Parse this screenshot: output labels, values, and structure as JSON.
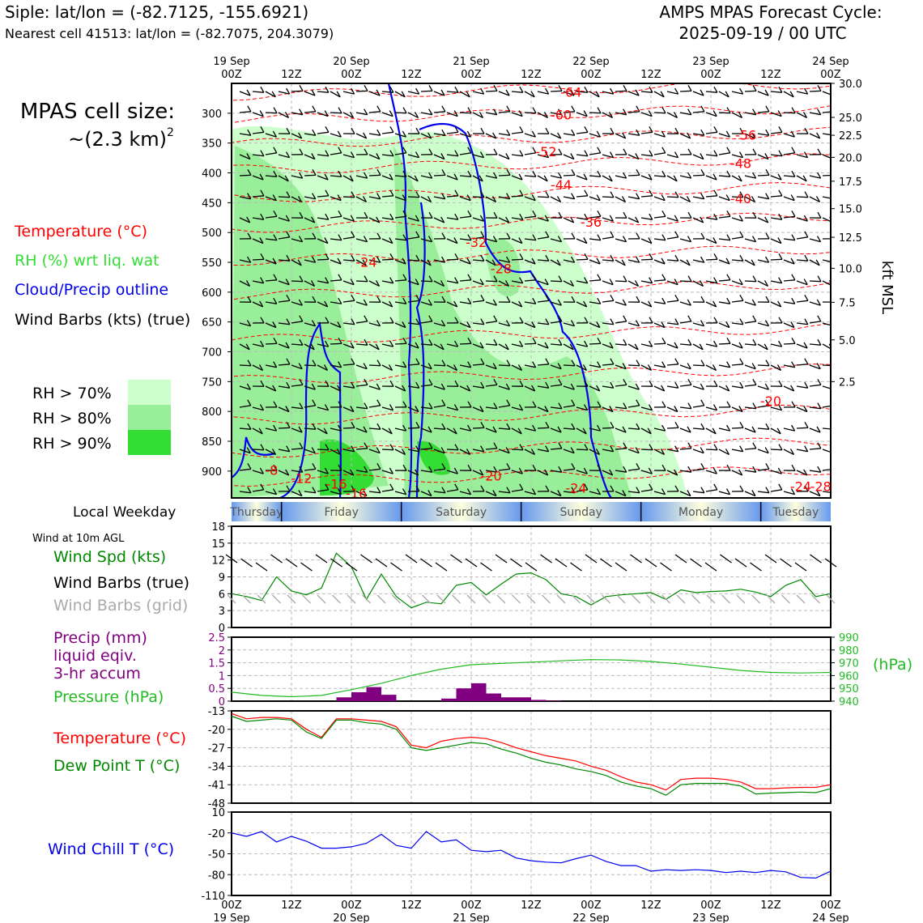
{
  "header": {
    "site_line": "Siple: lat/lon = (-82.7125, -155.6921)",
    "cell_line": "Nearest cell 41513: lat/lon = (-82.7075, 204.3079)",
    "cycle_title": "AMPS MPAS Forecast Cycle:",
    "cycle_time": "2025-09-19 / 00 UTC"
  },
  "legend": {
    "cell_size_title": "MPAS cell size:",
    "cell_size_value": "~(2.3 km)",
    "cell_size_exp": "2",
    "temperature": "Temperature (°C)",
    "rh": "RH (%) wrt liq. wat",
    "cloud": "Cloud/Precip outline",
    "barbs": "Wind Barbs (kts) (true)",
    "rh70": "RH > 70%",
    "rh80": "RH > 80%",
    "rh90": "RH > 90%",
    "colors": {
      "rh70": "#ccffcc",
      "rh80": "#99ee99",
      "rh90": "#33dd33",
      "temp": "#ff0000",
      "rh_text": "#33dd33",
      "cloud": "#0000ee"
    }
  },
  "time_axis": {
    "top_labels": [
      {
        "h": 0,
        "l1": "19 Sep",
        "l2": "00Z"
      },
      {
        "h": 12,
        "l1": "",
        "l2": "12Z"
      },
      {
        "h": 24,
        "l1": "20 Sep",
        "l2": "00Z"
      },
      {
        "h": 36,
        "l1": "",
        "l2": "12Z"
      },
      {
        "h": 48,
        "l1": "21 Sep",
        "l2": "00Z"
      },
      {
        "h": 60,
        "l1": "",
        "l2": "12Z"
      },
      {
        "h": 72,
        "l1": "22 Sep",
        "l2": "00Z"
      },
      {
        "h": 84,
        "l1": "",
        "l2": "12Z"
      },
      {
        "h": 96,
        "l1": "23 Sep",
        "l2": "00Z"
      },
      {
        "h": 108,
        "l1": "",
        "l2": "12Z"
      },
      {
        "h": 120,
        "l1": "24 Sep",
        "l2": "00Z"
      }
    ],
    "range_hours": [
      0,
      120
    ]
  },
  "weekday": {
    "label": "Local Weekday",
    "days": [
      "Thursday",
      "Friday",
      "Saturday",
      "Sunday",
      "Monday",
      "Tuesday"
    ]
  },
  "panels": {
    "wind_title": "Wind at 10m AGL",
    "wind_spd": "Wind Spd (kts)",
    "wind_barbs_true": "Wind Barbs (true)",
    "wind_barbs_grid": "Wind Barbs (grid)",
    "precip_l1": "Precip (mm)",
    "precip_l2": "liquid eqiv.",
    "precip_l3": "3-hr accum",
    "pressure": "Pressure (hPa)",
    "pressure_unit": "(hPa)",
    "temp": "Temperature (°C)",
    "dewpt": "Dew Point T (°C)",
    "windchill": "Wind Chill T (°C)",
    "colors": {
      "wind": "#008800",
      "barb_grid": "#aaaaaa",
      "precip": "#800080",
      "pressure": "#22bb22",
      "temp": "#ff0000",
      "dewpt": "#008800",
      "windchill": "#0000ee"
    }
  },
  "chart_data": [
    {
      "type": "heatmap",
      "title": "Time-height section",
      "x_range_hours": [
        0,
        120
      ],
      "y_axis_left": {
        "label": "",
        "ticks": [
          300,
          350,
          400,
          450,
          500,
          550,
          600,
          650,
          700,
          750,
          800,
          850,
          900
        ],
        "ylim": [
          945,
          250
        ]
      },
      "y_axis_right": {
        "label": "kft MSL",
        "ticks": [
          "30.0",
          "25.0",
          "22.5",
          "20.0",
          "17.5",
          "15.0",
          "12.5",
          "10.0",
          "7.5",
          "5.0",
          "2.5"
        ],
        "tick_p": [
          250,
          307,
          337,
          374,
          414,
          460,
          508,
          560,
          617,
          680,
          750
        ]
      },
      "temperature_contour_labels": [
        {
          "v": "-64",
          "h": 68,
          "p": 264
        },
        {
          "v": "-60",
          "h": 66,
          "p": 302
        },
        {
          "v": "-56",
          "h": 103,
          "p": 336
        },
        {
          "v": "-52",
          "h": 63,
          "p": 364
        },
        {
          "v": "-48",
          "h": 102,
          "p": 384
        },
        {
          "v": "-44",
          "h": 66,
          "p": 420
        },
        {
          "v": "-40",
          "h": 102,
          "p": 443
        },
        {
          "v": "-36",
          "h": 72,
          "p": 482
        },
        {
          "v": "-32",
          "h": 49,
          "p": 516
        },
        {
          "v": "-28",
          "h": 54,
          "p": 560
        },
        {
          "v": "-24",
          "h": 27,
          "p": 549
        },
        {
          "v": "-20",
          "h": 108,
          "p": 782
        },
        {
          "v": "-20",
          "h": 52,
          "p": 908
        },
        {
          "v": "-24",
          "h": 69,
          "p": 928
        },
        {
          "v": "-24",
          "h": 114,
          "p": 925
        },
        {
          "v": "-28",
          "h": 118,
          "p": 925
        },
        {
          "v": "-16",
          "h": 21,
          "p": 921
        },
        {
          "v": "-16",
          "h": 25,
          "p": 937
        },
        {
          "v": "-12",
          "h": 14,
          "p": 912
        },
        {
          "v": "-8",
          "h": 8,
          "p": 898
        }
      ]
    },
    {
      "type": "line",
      "title": "Wind at 10m AGL",
      "ylabel": "Wind Spd (kts)",
      "ylim": [
        0,
        18
      ],
      "yticks": [
        0,
        3,
        6,
        9,
        12,
        15,
        18
      ],
      "series": [
        {
          "name": "Wind Spd (kts)",
          "x": [
            0,
            3,
            6,
            9,
            12,
            15,
            18,
            21,
            24,
            27,
            30,
            33,
            36,
            39,
            42,
            45,
            48,
            51,
            54,
            57,
            60,
            63,
            66,
            69,
            72,
            75,
            78,
            81,
            84,
            87,
            90,
            93,
            96,
            99,
            102,
            105,
            108,
            111,
            114,
            117,
            120
          ],
          "values": [
            6,
            5.5,
            4.8,
            9,
            6.5,
            5.8,
            7,
            13.2,
            10.8,
            5,
            9.5,
            5.5,
            3.5,
            4.5,
            4.2,
            7.5,
            8,
            5.8,
            7.7,
            9.5,
            9.7,
            8.5,
            6,
            5.5,
            4,
            5.5,
            5.8,
            6,
            6.2,
            5,
            6.7,
            6.2,
            6.4,
            6.5,
            6.8,
            6.3,
            5.5,
            7.5,
            8.5,
            5.5,
            6
          ]
        }
      ]
    },
    {
      "type": "bar",
      "title": "Precip / Pressure",
      "ylabel_left": "Precip (mm)",
      "ylim_left": [
        0,
        2.5
      ],
      "yticks_left": [
        0,
        0.5,
        1.0,
        1.5,
        2.0,
        2.5
      ],
      "ylim_right": [
        940,
        990
      ],
      "yticks_right": [
        940,
        950,
        960,
        970,
        980,
        990
      ],
      "precip": {
        "x": [
          21,
          24,
          27,
          30,
          42,
          45,
          48,
          51,
          54,
          57,
          60,
          63
        ],
        "values": [
          0.15,
          0.35,
          0.55,
          0.25,
          0.1,
          0.5,
          0.7,
          0.3,
          0.15,
          0.15,
          0.05,
          0.02
        ]
      },
      "pressure": {
        "x": [
          0,
          6,
          12,
          18,
          24,
          30,
          36,
          42,
          48,
          54,
          60,
          66,
          72,
          78,
          84,
          90,
          96,
          102,
          108,
          114,
          120
        ],
        "values": [
          947,
          944.5,
          943.5,
          944.5,
          949,
          954,
          960,
          965,
          968.5,
          969.5,
          970.5,
          971.5,
          972.5,
          972.2,
          971,
          969,
          966.5,
          964,
          962.5,
          962,
          962.5
        ]
      }
    },
    {
      "type": "line",
      "title": "Temperature / Dew Point",
      "ylim": [
        -48,
        -13
      ],
      "yticks": [
        -13,
        -20,
        -27,
        -34,
        -41,
        -48
      ],
      "series": [
        {
          "name": "Temperature (°C)",
          "x": [
            0,
            3,
            6,
            9,
            12,
            15,
            18,
            21,
            24,
            27,
            30,
            33,
            36,
            39,
            42,
            45,
            48,
            51,
            54,
            57,
            60,
            63,
            66,
            69,
            72,
            75,
            78,
            81,
            84,
            87,
            90,
            93,
            96,
            99,
            102,
            105,
            108,
            111,
            114,
            117,
            120
          ],
          "values": [
            -14,
            -16,
            -15.5,
            -15.5,
            -16,
            -20,
            -23,
            -16,
            -16,
            -16.5,
            -17,
            -19,
            -26,
            -27,
            -24.5,
            -23.5,
            -23,
            -23.5,
            -25,
            -27,
            -28.5,
            -30,
            -31,
            -32,
            -34,
            -35.5,
            -38,
            -40,
            -41,
            -43,
            -39,
            -38.5,
            -38.5,
            -39,
            -40,
            -42.5,
            -42.5,
            -42.2,
            -42,
            -42,
            -41
          ]
        },
        {
          "name": "Dew Point T (°C)",
          "x": [
            0,
            3,
            6,
            9,
            12,
            15,
            18,
            21,
            24,
            27,
            30,
            33,
            36,
            39,
            42,
            45,
            48,
            51,
            54,
            57,
            60,
            63,
            66,
            69,
            72,
            75,
            78,
            81,
            84,
            87,
            90,
            93,
            96,
            99,
            102,
            105,
            108,
            111,
            114,
            117,
            120
          ],
          "values": [
            -15,
            -17,
            -16.5,
            -16,
            -16.5,
            -21,
            -23.5,
            -16.5,
            -16.5,
            -17.5,
            -18,
            -20,
            -27,
            -28,
            -27,
            -26,
            -25,
            -25.5,
            -27.5,
            -29,
            -31,
            -32.5,
            -33.5,
            -35,
            -36,
            -37.5,
            -40,
            -41.5,
            -42.5,
            -45,
            -41,
            -40.5,
            -40.5,
            -40.5,
            -41.5,
            -44.5,
            -44.2,
            -44,
            -43.8,
            -44,
            -42.5
          ]
        }
      ]
    },
    {
      "type": "line",
      "title": "Wind Chill",
      "ylabel": "Wind Chill T (°C)",
      "ylim": [
        -110,
        10
      ],
      "yticks": [
        10,
        -20,
        -50,
        -80,
        -110
      ],
      "series": [
        {
          "name": "Wind Chill T (°C)",
          "x": [
            0,
            3,
            6,
            9,
            12,
            15,
            18,
            21,
            24,
            27,
            30,
            33,
            36,
            39,
            42,
            45,
            48,
            51,
            54,
            57,
            60,
            63,
            66,
            69,
            72,
            75,
            78,
            81,
            84,
            87,
            90,
            93,
            96,
            99,
            102,
            105,
            108,
            111,
            114,
            117,
            120
          ],
          "values": [
            -20,
            -25,
            -18,
            -33,
            -25,
            -32,
            -42,
            -42,
            -40,
            -35,
            -22,
            -38,
            -42,
            -18,
            -33,
            -30,
            -45,
            -47,
            -45,
            -56,
            -60,
            -62,
            -63,
            -57,
            -52,
            -61,
            -67,
            -67,
            -75,
            -73,
            -74,
            -73,
            -74,
            -77,
            -75,
            -77,
            -74,
            -76,
            -84,
            -85,
            -75
          ]
        }
      ]
    }
  ]
}
